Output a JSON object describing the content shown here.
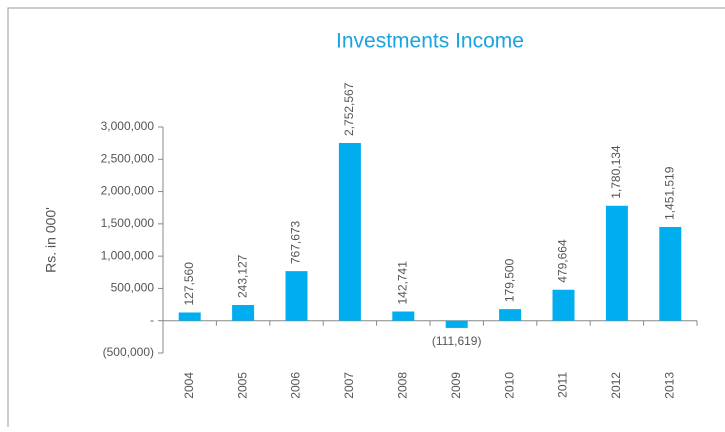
{
  "chart_data": {
    "type": "bar",
    "title": "Investments Income",
    "y_label": "Rs. in 000'",
    "categories": [
      "2004",
      "2005",
      "2006",
      "2007",
      "2008",
      "2009",
      "2010",
      "2011",
      "2012",
      "2013"
    ],
    "values": [
      127560,
      243127,
      767673,
      2752567,
      142741,
      -111619,
      179500,
      479664,
      1780134,
      1451519
    ],
    "value_labels": [
      "127,560",
      "243,127",
      "767,673",
      "2,752,567",
      "142,741",
      "(111,619)",
      "179,500",
      "479,664",
      "1,780,134",
      "1,451,519"
    ],
    "color": "#00aeef",
    "title_color": "#1aa3e0",
    "ylim": [
      -500000,
      3000000
    ],
    "yticks": [
      {
        "value": -500000,
        "label": "(500,000)"
      },
      {
        "value": 0,
        "label": "-"
      },
      {
        "value": 500000,
        "label": "500,000"
      },
      {
        "value": 1000000,
        "label": "1,000,000"
      },
      {
        "value": 1500000,
        "label": "1,500,000"
      },
      {
        "value": 2000000,
        "label": "2,000,000"
      },
      {
        "value": 2500000,
        "label": "2,500,000"
      },
      {
        "value": 3000000,
        "label": "3,000,000"
      }
    ],
    "grid": false
  }
}
